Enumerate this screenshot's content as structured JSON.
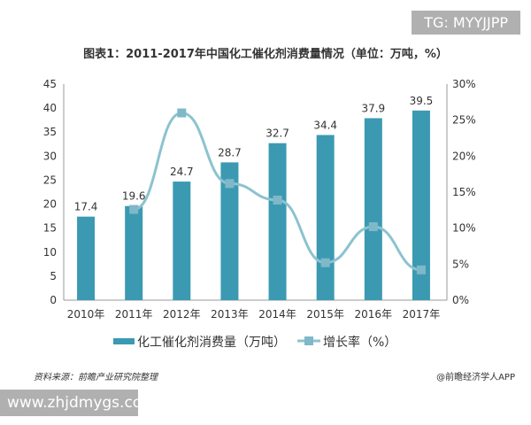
{
  "overlay_tag": "TG: MYYJJPP",
  "footer_url": "www.zhjdmygs.com",
  "source": "资料来源：前瞻产业研究院整理",
  "credit": "@前瞻经济学人APP",
  "colors": {
    "bar": "#3b9ab2",
    "line": "#8cc3cf",
    "marker": "#7fb8c8"
  },
  "chart_data": {
    "type": "bar+line",
    "title": "图表1：2011-2017年中国化工催化剂消费量情况（单位：万吨，%）",
    "categories": [
      "2010年",
      "2011年",
      "2012年",
      "2013年",
      "2014年",
      "2015年",
      "2016年",
      "2017年"
    ],
    "series": [
      {
        "name": "化工催化剂消费量（万吨）",
        "type": "bar",
        "axis": "left",
        "values": [
          17.4,
          19.6,
          24.7,
          28.7,
          32.7,
          34.4,
          37.9,
          39.5
        ]
      },
      {
        "name": "增长率（%）",
        "type": "line",
        "axis": "right",
        "values": [
          null,
          12.6,
          26.0,
          16.2,
          13.9,
          5.2,
          10.2,
          4.2
        ]
      }
    ],
    "ylim_left": [
      0,
      45
    ],
    "yticks_left": [
      0,
      5,
      10,
      15,
      20,
      25,
      30,
      35,
      40,
      45
    ],
    "ylim_right": [
      0,
      30
    ],
    "yticks_right": [
      "0%",
      "5%",
      "10%",
      "15%",
      "20%",
      "25%",
      "30%"
    ],
    "grid": false,
    "legend": "bottom"
  }
}
